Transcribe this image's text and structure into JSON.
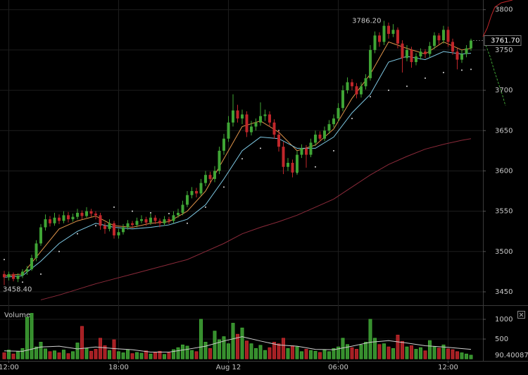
{
  "chart_data": {
    "type": "candlestick",
    "up_color": "#3fa535",
    "down_color": "#c0262a",
    "ylim": [
      3436,
      3812
    ],
    "yticks": [
      3450,
      3500,
      3550,
      3600,
      3650,
      3700,
      3750,
      3800
    ],
    "xticks": [
      {
        "value": 1,
        "label": "12:00"
      },
      {
        "value": 25,
        "label": "18:00"
      },
      {
        "value": 49,
        "label": "Aug 12"
      },
      {
        "value": 73,
        "label": "06:00"
      },
      {
        "value": 97,
        "label": "12:00"
      }
    ],
    "grid": true,
    "high_label": "3786.20",
    "low_label": "3458.40",
    "last_label": "3761.70",
    "candles": [
      [
        3472,
        3476,
        3458.4,
        3468
      ],
      [
        3468,
        3475,
        3464,
        3472
      ],
      [
        3472,
        3474,
        3463,
        3466
      ],
      [
        3466,
        3473,
        3462,
        3470
      ],
      [
        3470,
        3478,
        3467,
        3475
      ],
      [
        3475,
        3482,
        3471,
        3478
      ],
      [
        3478,
        3496,
        3476,
        3492
      ],
      [
        3492,
        3514,
        3488,
        3510
      ],
      [
        3510,
        3534,
        3507,
        3530
      ],
      [
        3530,
        3546,
        3526,
        3540
      ],
      [
        3540,
        3544,
        3531,
        3535
      ],
      [
        3535,
        3548,
        3532,
        3542
      ],
      [
        3542,
        3546,
        3534,
        3538
      ],
      [
        3538,
        3550,
        3535,
        3545
      ],
      [
        3545,
        3549,
        3536,
        3540
      ],
      [
        3540,
        3547,
        3537,
        3543
      ],
      [
        3543,
        3553,
        3540,
        3548
      ],
      [
        3548,
        3551,
        3540,
        3544
      ],
      [
        3544,
        3555,
        3542,
        3550
      ],
      [
        3550,
        3553,
        3543,
        3547
      ],
      [
        3547,
        3550,
        3540,
        3545
      ],
      [
        3545,
        3548,
        3527,
        3532
      ],
      [
        3532,
        3536,
        3522,
        3528
      ],
      [
        3528,
        3540,
        3525,
        3535
      ],
      [
        3535,
        3538,
        3516,
        3520
      ],
      [
        3520,
        3528,
        3516,
        3524
      ],
      [
        3524,
        3534,
        3521,
        3530
      ],
      [
        3530,
        3539,
        3527,
        3535
      ],
      [
        3535,
        3538,
        3529,
        3533
      ],
      [
        3533,
        3542,
        3530,
        3538
      ],
      [
        3538,
        3545,
        3535,
        3540
      ],
      [
        3540,
        3543,
        3532,
        3536
      ],
      [
        3536,
        3547,
        3533,
        3542
      ],
      [
        3542,
        3545,
        3534,
        3538
      ],
      [
        3538,
        3541,
        3530,
        3535
      ],
      [
        3535,
        3544,
        3532,
        3540
      ],
      [
        3540,
        3543,
        3534,
        3538
      ],
      [
        3538,
        3550,
        3535,
        3545
      ],
      [
        3545,
        3553,
        3542,
        3548
      ],
      [
        3548,
        3563,
        3545,
        3558
      ],
      [
        3558,
        3575,
        3555,
        3570
      ],
      [
        3570,
        3580,
        3566,
        3575
      ],
      [
        3575,
        3579,
        3567,
        3572
      ],
      [
        3572,
        3590,
        3569,
        3585
      ],
      [
        3585,
        3600,
        3581,
        3595
      ],
      [
        3595,
        3599,
        3585,
        3590
      ],
      [
        3590,
        3606,
        3586,
        3600
      ],
      [
        3600,
        3630,
        3596,
        3625
      ],
      [
        3625,
        3646,
        3620,
        3640
      ],
      [
        3640,
        3668,
        3636,
        3660
      ],
      [
        3660,
        3695,
        3655,
        3675
      ],
      [
        3675,
        3682,
        3660,
        3665
      ],
      [
        3665,
        3676,
        3658,
        3670
      ],
      [
        3670,
        3674,
        3642,
        3648
      ],
      [
        3648,
        3662,
        3644,
        3655
      ],
      [
        3655,
        3665,
        3650,
        3660
      ],
      [
        3660,
        3685,
        3656,
        3668
      ],
      [
        3668,
        3676,
        3662,
        3670
      ],
      [
        3670,
        3674,
        3655,
        3660
      ],
      [
        3660,
        3664,
        3640,
        3645
      ],
      [
        3645,
        3650,
        3624,
        3630
      ],
      [
        3630,
        3636,
        3596,
        3605
      ],
      [
        3605,
        3616,
        3600,
        3610
      ],
      [
        3610,
        3614,
        3592,
        3598
      ],
      [
        3598,
        3625,
        3595,
        3620
      ],
      [
        3620,
        3633,
        3616,
        3628
      ],
      [
        3628,
        3632,
        3604,
        3620
      ],
      [
        3620,
        3640,
        3617,
        3635
      ],
      [
        3635,
        3650,
        3631,
        3645
      ],
      [
        3645,
        3649,
        3636,
        3640
      ],
      [
        3640,
        3655,
        3637,
        3650
      ],
      [
        3650,
        3663,
        3646,
        3658
      ],
      [
        3658,
        3670,
        3654,
        3665
      ],
      [
        3665,
        3684,
        3661,
        3678
      ],
      [
        3678,
        3706,
        3674,
        3700
      ],
      [
        3700,
        3716,
        3696,
        3710
      ],
      [
        3710,
        3714,
        3700,
        3705
      ],
      [
        3705,
        3709,
        3690,
        3695
      ],
      [
        3695,
        3710,
        3691,
        3705
      ],
      [
        3705,
        3720,
        3701,
        3715
      ],
      [
        3715,
        3756,
        3712,
        3750
      ],
      [
        3750,
        3773,
        3746,
        3768
      ],
      [
        3768,
        3772,
        3754,
        3760
      ],
      [
        3760,
        3786.2,
        3756,
        3780
      ],
      [
        3780,
        3784,
        3764,
        3770
      ],
      [
        3770,
        3782,
        3766,
        3775
      ],
      [
        3775,
        3778,
        3752,
        3758
      ],
      [
        3758,
        3762,
        3722,
        3740
      ],
      [
        3740,
        3756,
        3736,
        3750
      ],
      [
        3750,
        3754,
        3728,
        3735
      ],
      [
        3735,
        3746,
        3731,
        3742
      ],
      [
        3742,
        3752,
        3738,
        3748
      ],
      [
        3748,
        3751,
        3740,
        3745
      ],
      [
        3745,
        3760,
        3741,
        3755
      ],
      [
        3755,
        3772,
        3751,
        3768
      ],
      [
        3768,
        3771,
        3757,
        3762
      ],
      [
        3762,
        3780,
        3758,
        3775
      ],
      [
        3775,
        3779,
        3754,
        3760
      ],
      [
        3760,
        3764,
        3744,
        3748
      ],
      [
        3748,
        3752,
        3726,
        3738
      ],
      [
        3738,
        3750,
        3734,
        3745
      ],
      [
        3745,
        3756,
        3741,
        3752
      ],
      [
        3752,
        3764,
        3749,
        3761.7
      ]
    ],
    "overlay_x": [
      0,
      4,
      8,
      12,
      16,
      20,
      24,
      28,
      32,
      36,
      40,
      44,
      48,
      52,
      56,
      60,
      64,
      68,
      72,
      76,
      80,
      84,
      88,
      92,
      96,
      100,
      102
    ],
    "overlays": [
      {
        "style": "line",
        "color": "#e0944a",
        "values": [
          3470,
          3472,
          3500,
          3528,
          3538,
          3544,
          3532,
          3530,
          3535,
          3537,
          3550,
          3575,
          3615,
          3655,
          3662,
          3648,
          3625,
          3632,
          3652,
          3690,
          3720,
          3760,
          3752,
          3745,
          3760,
          3750,
          3752
        ]
      },
      {
        "style": "line",
        "color": "#7ec8e3",
        "values": [
          3468,
          3470,
          3488,
          3510,
          3525,
          3535,
          3530,
          3528,
          3530,
          3533,
          3540,
          3558,
          3590,
          3625,
          3642,
          3640,
          3628,
          3628,
          3642,
          3672,
          3695,
          3735,
          3742,
          3738,
          3748,
          3745,
          3746
        ]
      },
      {
        "style": "dots",
        "color": "#dddddd",
        "values": [
          3490,
          3462,
          3472,
          3500,
          3522,
          3532,
          3555,
          3550,
          3548,
          3547,
          3535,
          3555,
          3580,
          3615,
          3628,
          3650,
          3598,
          3605,
          3625,
          3665,
          3692,
          3700,
          3705,
          3715,
          3722,
          3725,
          3726
        ]
      },
      {
        "style": "line",
        "color": "#8b2a3a",
        "values": [
          null,
          null,
          3440,
          3446,
          3453,
          3460,
          3466,
          3472,
          3478,
          3484,
          3490,
          3500,
          3510,
          3522,
          3530,
          3537,
          3545,
          3555,
          3565,
          3580,
          3595,
          3608,
          3618,
          3627,
          3633,
          3638,
          3640
        ]
      }
    ],
    "volume": {
      "title": "Volume",
      "ylim": [
        0,
        1304
      ],
      "yticks": [
        500,
        1000
      ],
      "values": [
        150,
        220,
        120,
        180,
        260,
        1050,
        1150,
        300,
        420,
        250,
        180,
        200,
        150,
        220,
        130,
        180,
        400,
        820,
        260,
        190,
        240,
        520,
        330,
        210,
        480,
        180,
        150,
        220,
        130,
        160,
        140,
        200,
        120,
        160,
        190,
        110,
        150,
        230,
        280,
        350,
        320,
        210,
        180,
        1000,
        420,
        260,
        700,
        480,
        560,
        380,
        900,
        620,
        780,
        450,
        380,
        260,
        340,
        210,
        280,
        420,
        380,
        520,
        260,
        330,
        300,
        180,
        240,
        210,
        190,
        160,
        220,
        180,
        260,
        300,
        520,
        360,
        280,
        240,
        350,
        420,
        1000,
        520,
        360,
        380,
        300,
        260,
        600,
        440,
        300,
        330,
        240,
        280,
        200,
        460,
        300,
        270,
        350,
        250,
        230,
        180,
        150,
        120,
        90.400871
      ],
      "ma": {
        "color": "#cfcfcf",
        "values": [
          200,
          190,
          300,
          320,
          250,
          300,
          260,
          230,
          170,
          170,
          240,
          320,
          450,
          560,
          450,
          350,
          320,
          240,
          230,
          320,
          420,
          460,
          400,
          330,
          300,
          260,
          240
        ]
      }
    }
  }
}
